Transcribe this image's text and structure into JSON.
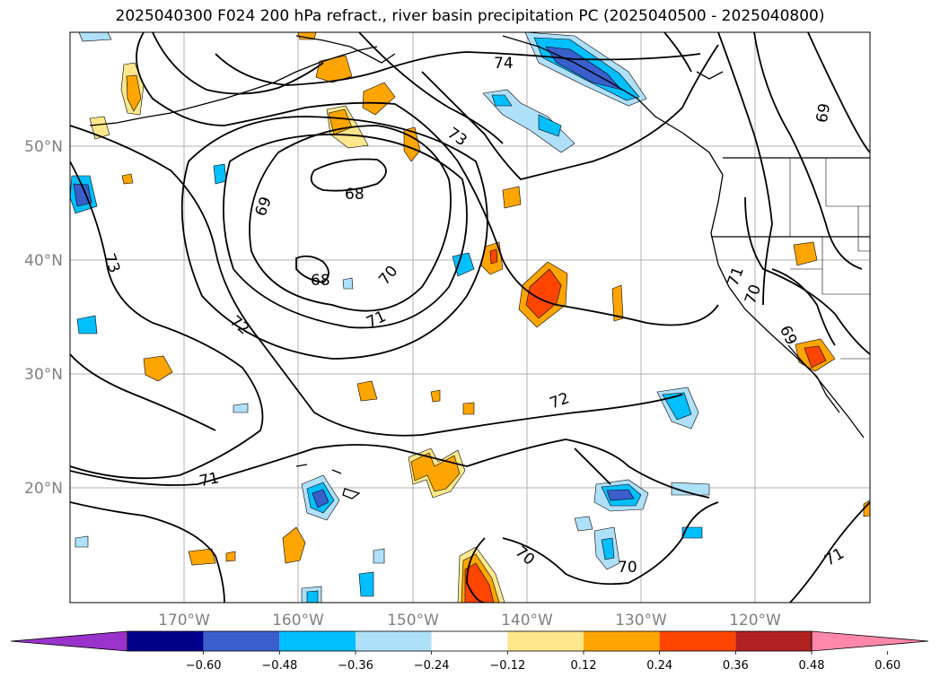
{
  "title": "2025040300 F024 200 hPa refract., river basin precipitation PC (2025040500 - 2025040800)",
  "lat_labels": [
    "50°N",
    "40°N",
    "30°N",
    "20°N"
  ],
  "lon_labels": [
    "170°W",
    "160°W",
    "150°W",
    "140°W",
    "130°W",
    "120°W"
  ],
  "colorbar": {
    "colors": [
      "#9933cc",
      "#00008b",
      "#3a5fcd",
      "#00bfff",
      "#afe0fa",
      "#ffffff",
      "#ffe88c",
      "#ffa500",
      "#ff4500",
      "#b22222",
      "#ff88aa"
    ],
    "tick_labels": [
      "−0.60",
      "−0.48",
      "−0.36",
      "−0.24",
      "−0.12",
      "0.12",
      "0.24",
      "0.36",
      "0.48",
      "0.60"
    ]
  },
  "contour_labels": [
    "74",
    "73",
    "68",
    "69",
    "73",
    "68",
    "70",
    "71",
    "72",
    "72",
    "71",
    "70",
    "70",
    "71",
    "69",
    "70",
    "71",
    "69"
  ]
}
